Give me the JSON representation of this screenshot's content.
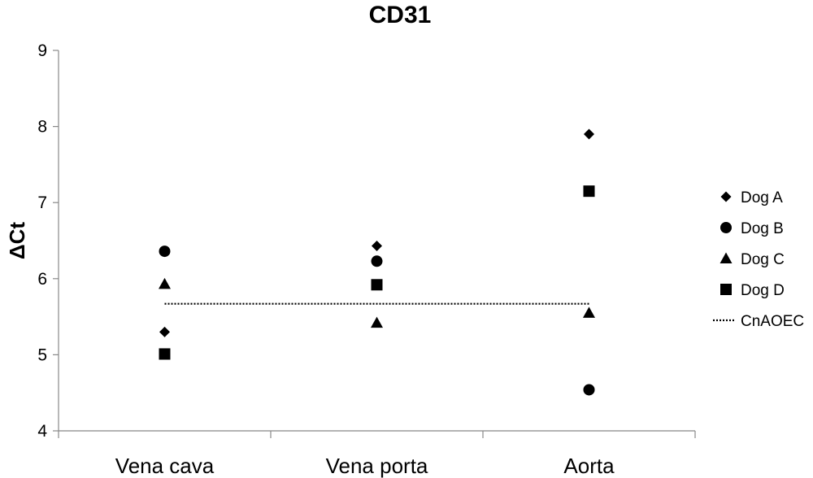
{
  "chart_data": {
    "type": "scatter",
    "title": "CD31",
    "xlabel": "",
    "ylabel": "ΔCt",
    "categories": [
      "Vena cava",
      "Vena porta",
      "Aorta"
    ],
    "ylim": [
      4,
      9
    ],
    "yticks": [
      "4",
      "5",
      "6",
      "7",
      "8",
      "9"
    ],
    "grid": false,
    "legend_position": "right",
    "series": [
      {
        "name": "Dog A",
        "marker": "diamond",
        "values": [
          5.3,
          6.43,
          7.9
        ]
      },
      {
        "name": "Dog B",
        "marker": "circle",
        "values": [
          6.36,
          6.23,
          4.54
        ]
      },
      {
        "name": "Dog C",
        "marker": "triangle",
        "values": [
          5.93,
          5.42,
          5.55
        ]
      },
      {
        "name": "Dog D",
        "marker": "square",
        "values": [
          5.01,
          5.92,
          7.15
        ]
      }
    ],
    "reference_line": {
      "name": "CnAOEC",
      "style": "dotted",
      "value": 5.67
    }
  }
}
